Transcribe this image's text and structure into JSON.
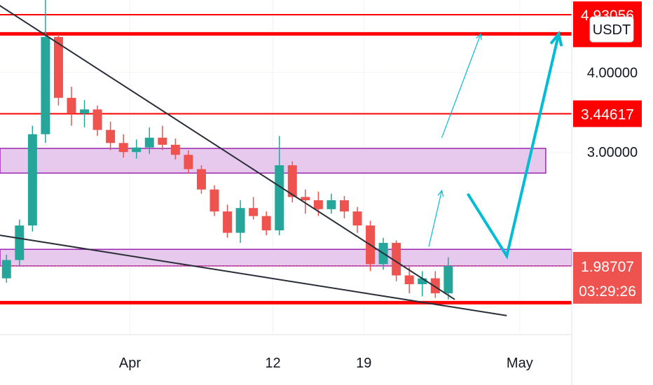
{
  "chart_data": {
    "type": "candlestick",
    "quote_currency": "USDT",
    "y_axis": {
      "ticks": [
        "4.00000",
        "3.00000"
      ],
      "scale": "log",
      "range": [
        1.55,
        5.2
      ]
    },
    "x_axis": {
      "ticks": [
        "Apr",
        "12",
        "19",
        "May"
      ],
      "range": [
        "2021-03-22",
        "2021-05-05"
      ]
    },
    "price_labels": [
      {
        "label": "4.93056",
        "value": 4.93056,
        "style": "red"
      },
      {
        "label": "4.6",
        "value": 4.6,
        "style": "red"
      },
      {
        "label": "3.44617",
        "value": 3.44617,
        "style": "red"
      },
      {
        "label": "1.98707",
        "value": 1.98707,
        "style": "current"
      }
    ],
    "countdown": "03:29:26",
    "horizontal_levels": [
      4.93056,
      4.6,
      3.44617,
      1.74
    ],
    "zones": [
      {
        "from_date": "2021-03-22",
        "to_date": "2021-05-03",
        "low": 2.78,
        "high": 3.04
      },
      {
        "from_date": "2021-03-22",
        "to_date": "2021-05-05",
        "low": 1.98707,
        "high": 2.11
      }
    ],
    "trendlines": [
      {
        "from": [
          "2021-03-21",
          5.25
        ],
        "to": [
          "2021-04-26",
          1.76
        ]
      },
      {
        "from": [
          "2021-03-22",
          2.22
        ],
        "to": [
          "2021-04-30",
          1.66
        ]
      }
    ],
    "projections": [
      {
        "points": [
          [
            "2021-04-27",
            2.58
          ],
          [
            "2021-04-30",
            2.06
          ],
          [
            "2021-05-04",
            4.6
          ]
        ]
      },
      {
        "points": [
          [
            "2021-04-24",
            2.13
          ],
          [
            "2021-04-25",
            2.61
          ]
        ]
      },
      {
        "points": [
          [
            "2021-04-25",
            3.16
          ],
          [
            "2021-04-28",
            4.6
          ]
        ]
      }
    ],
    "colors": {
      "up": "#26a69a",
      "down": "#ef5350",
      "level": "#ff0000",
      "zone_fill": "#e7c9ee",
      "zone_border": "#9c27b0",
      "projection": "#00bcd4",
      "trendline": "#2a2e39",
      "current_tag": "#ef5350"
    },
    "candles": [
      {
        "t": "2021-03-22",
        "o": 1.9,
        "h": 2.07,
        "l": 1.87,
        "c": 2.03
      },
      {
        "t": "2021-03-23",
        "o": 2.03,
        "h": 2.35,
        "l": 1.99,
        "c": 2.3
      },
      {
        "t": "2021-03-24",
        "o": 2.3,
        "h": 3.3,
        "l": 2.25,
        "c": 3.2
      },
      {
        "t": "2021-03-25",
        "o": 3.2,
        "h": 5.2,
        "l": 3.1,
        "c": 4.55
      },
      {
        "t": "2021-03-26",
        "o": 4.55,
        "h": 4.6,
        "l": 3.55,
        "c": 3.65
      },
      {
        "t": "2021-03-27",
        "o": 3.65,
        "h": 3.8,
        "l": 3.3,
        "c": 3.45
      },
      {
        "t": "2021-03-28",
        "o": 3.45,
        "h": 3.62,
        "l": 3.28,
        "c": 3.5
      },
      {
        "t": "2021-03-29",
        "o": 3.5,
        "h": 3.55,
        "l": 3.18,
        "c": 3.25
      },
      {
        "t": "2021-03-30",
        "o": 3.25,
        "h": 3.35,
        "l": 3.02,
        "c": 3.1
      },
      {
        "t": "2021-03-31",
        "o": 3.1,
        "h": 3.2,
        "l": 2.94,
        "c": 3.0
      },
      {
        "t": "2021-04-01",
        "o": 3.0,
        "h": 3.14,
        "l": 2.93,
        "c": 3.05
      },
      {
        "t": "2021-04-02",
        "o": 3.05,
        "h": 3.28,
        "l": 2.98,
        "c": 3.16
      },
      {
        "t": "2021-04-03",
        "o": 3.16,
        "h": 3.3,
        "l": 3.02,
        "c": 3.08
      },
      {
        "t": "2021-04-04",
        "o": 3.08,
        "h": 3.15,
        "l": 2.92,
        "c": 2.97
      },
      {
        "t": "2021-04-05",
        "o": 2.97,
        "h": 3.02,
        "l": 2.78,
        "c": 2.82
      },
      {
        "t": "2021-04-06",
        "o": 2.82,
        "h": 2.86,
        "l": 2.58,
        "c": 2.62
      },
      {
        "t": "2021-04-07",
        "o": 2.62,
        "h": 2.66,
        "l": 2.38,
        "c": 2.42
      },
      {
        "t": "2021-04-08",
        "o": 2.42,
        "h": 2.48,
        "l": 2.2,
        "c": 2.24
      },
      {
        "t": "2021-04-09",
        "o": 2.24,
        "h": 2.52,
        "l": 2.16,
        "c": 2.45
      },
      {
        "t": "2021-04-10",
        "o": 2.45,
        "h": 2.55,
        "l": 2.35,
        "c": 2.38
      },
      {
        "t": "2021-04-11",
        "o": 2.38,
        "h": 2.42,
        "l": 2.22,
        "c": 2.26
      },
      {
        "t": "2021-04-12",
        "o": 2.26,
        "h": 3.18,
        "l": 2.22,
        "c": 2.86
      },
      {
        "t": "2021-04-13",
        "o": 2.86,
        "h": 2.9,
        "l": 2.5,
        "c": 2.55
      },
      {
        "t": "2021-04-14",
        "o": 2.55,
        "h": 2.62,
        "l": 2.4,
        "c": 2.52
      },
      {
        "t": "2021-04-15",
        "o": 2.52,
        "h": 2.6,
        "l": 2.38,
        "c": 2.44
      },
      {
        "t": "2021-04-16",
        "o": 2.44,
        "h": 2.58,
        "l": 2.4,
        "c": 2.52
      },
      {
        "t": "2021-04-17",
        "o": 2.52,
        "h": 2.56,
        "l": 2.36,
        "c": 2.42
      },
      {
        "t": "2021-04-18",
        "o": 2.42,
        "h": 2.46,
        "l": 2.24,
        "c": 2.3
      },
      {
        "t": "2021-04-19",
        "o": 2.3,
        "h": 2.34,
        "l": 1.95,
        "c": 2.0
      },
      {
        "t": "2021-04-20",
        "o": 2.0,
        "h": 2.2,
        "l": 1.96,
        "c": 2.16
      },
      {
        "t": "2021-04-21",
        "o": 2.16,
        "h": 2.18,
        "l": 1.88,
        "c": 1.92
      },
      {
        "t": "2021-04-22",
        "o": 1.92,
        "h": 1.98,
        "l": 1.8,
        "c": 1.86
      },
      {
        "t": "2021-04-23",
        "o": 1.86,
        "h": 1.95,
        "l": 1.78,
        "c": 1.9
      },
      {
        "t": "2021-04-24",
        "o": 1.9,
        "h": 1.95,
        "l": 1.77,
        "c": 1.8
      },
      {
        "t": "2021-04-25",
        "o": 1.8,
        "h": 2.05,
        "l": 1.76,
        "c": 1.98707
      }
    ]
  }
}
